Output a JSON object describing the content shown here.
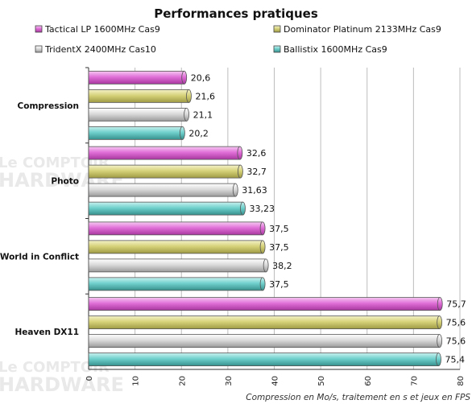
{
  "chart_data": {
    "type": "bar",
    "orientation": "horizontal",
    "title": "Performances pratiques",
    "categories": [
      "Compression",
      "Photo",
      "World in Conflict",
      "Heaven DX11"
    ],
    "series": [
      {
        "name": "Tactical LP 1600MHz Cas9",
        "values": [
          20.6,
          32.6,
          37.5,
          75.7
        ],
        "labels": [
          "20,6",
          "32,6",
          "37,5",
          "75,7"
        ],
        "color": "#e070d8"
      },
      {
        "name": "Dominator Platinum 2133MHz Cas9",
        "values": [
          21.6,
          32.7,
          37.5,
          75.6
        ],
        "labels": [
          "21,6",
          "32,7",
          "37,5",
          "75,6"
        ],
        "color": "#d6d27a"
      },
      {
        "name": "TridentX 2400MHz Cas10",
        "values": [
          21.1,
          31.63,
          38.2,
          75.6
        ],
        "labels": [
          "21,1",
          "31,63",
          "38,2",
          "75,6"
        ],
        "color": "#d0d0d0"
      },
      {
        "name": "Ballistix 1600MHz Cas9",
        "values": [
          20.2,
          33.23,
          37.5,
          75.4
        ],
        "labels": [
          "20,2",
          "33,23",
          "37,5",
          "75,4"
        ],
        "color": "#70d0cc"
      }
    ],
    "xlim": [
      0,
      80
    ],
    "xticks": [
      "0",
      "10",
      "20",
      "30",
      "40",
      "50",
      "60",
      "70",
      "80"
    ],
    "xlabel": "Compression  en  Mo/s, traitement  en  s et jeux en FPS",
    "grid": true,
    "legend_position": "top"
  },
  "watermark": {
    "line1": "Le COMPTOIR",
    "line2": "du",
    "line3": "HARDWARE"
  }
}
